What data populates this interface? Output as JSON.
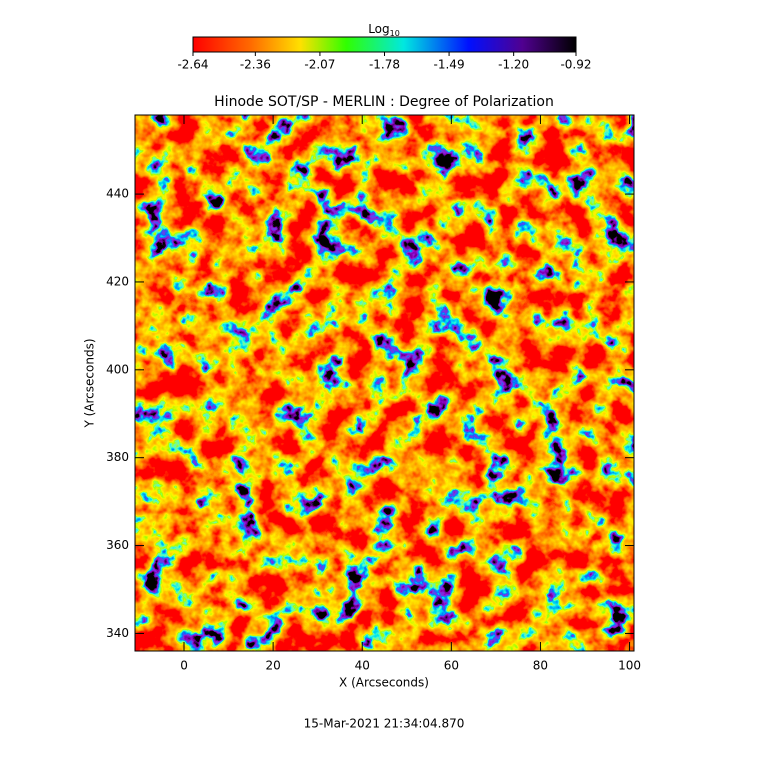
{
  "chart_data": {
    "type": "image",
    "title": "Hinode SOT/SP - MERLIN : Degree of Polarization",
    "x_label": "X (Arcseconds)",
    "y_label": "Y (Arcseconds)",
    "footer": "15-Mar-2021 21:34:04.870",
    "xlim": [
      -11,
      101
    ],
    "ylim": [
      336,
      458
    ],
    "xticks": [
      0,
      20,
      40,
      60,
      80,
      100
    ],
    "yticks": [
      340,
      360,
      380,
      400,
      420,
      440
    ],
    "colorbar_label_base": "Log",
    "colorbar_label_subscript": "10",
    "colorbar_lim": [
      -2.64,
      -0.92
    ],
    "colorbar_ticks": [
      -2.64,
      -2.36,
      -2.07,
      -1.78,
      -1.49,
      {
        "value": -1.2,
        "label": "-1.20"
      },
      -0.92
    ]
  }
}
